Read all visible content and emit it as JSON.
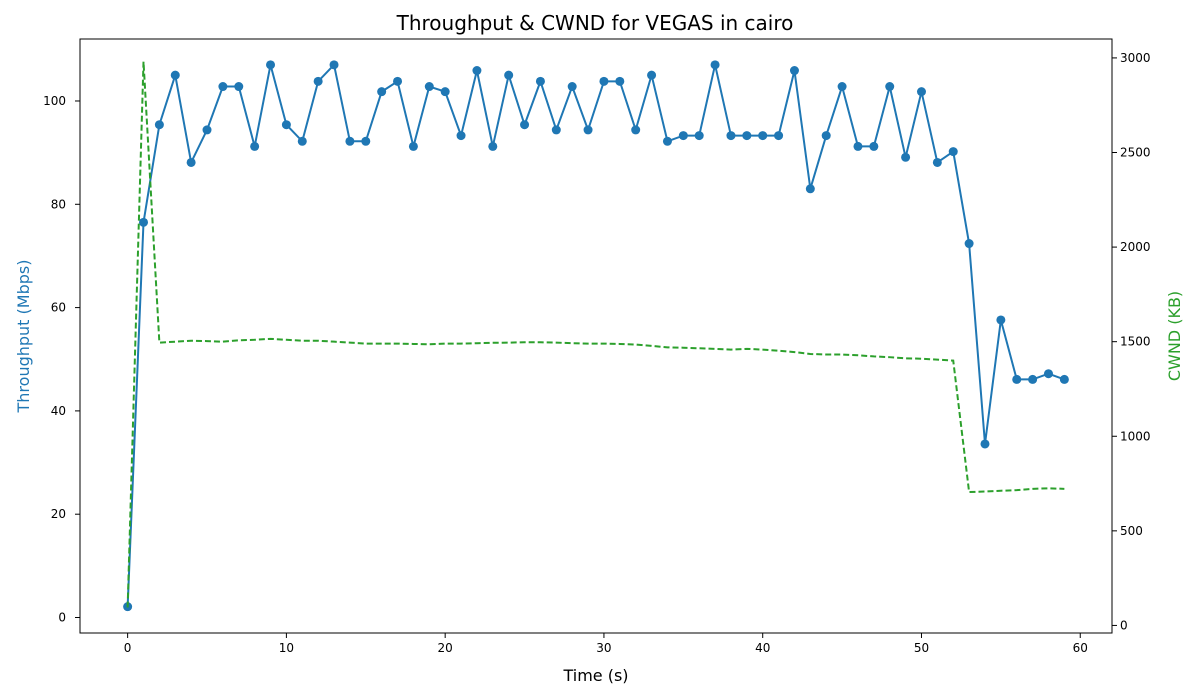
{
  "chart_data": {
    "type": "line",
    "title": "Throughput & CWND for VEGAS in cairo",
    "xlabel": "Time (s)",
    "ylabel_left": "Throughput (Mbps)",
    "ylabel_right": "CWND (KB)",
    "xlim": [
      -3,
      62
    ],
    "ylim_left": [
      -3,
      112
    ],
    "ylim_right": [
      -40,
      3100
    ],
    "xticks": [
      0,
      10,
      20,
      30,
      40,
      50,
      60
    ],
    "yticks_left": [
      0,
      20,
      40,
      60,
      80,
      100
    ],
    "yticks_right": [
      0,
      500,
      1000,
      1500,
      2000,
      2500,
      3000
    ],
    "grid": false,
    "colors": {
      "throughput": "#1f77b4",
      "cwnd": "#2ca02c"
    },
    "x": [
      0,
      1,
      2,
      3,
      4,
      5,
      6,
      7,
      8,
      9,
      10,
      11,
      12,
      13,
      14,
      15,
      16,
      17,
      18,
      19,
      20,
      21,
      22,
      23,
      24,
      25,
      26,
      27,
      28,
      29,
      30,
      31,
      32,
      33,
      34,
      35,
      36,
      37,
      38,
      39,
      40,
      41,
      42,
      43,
      44,
      45,
      46,
      47,
      48,
      49,
      50,
      51,
      52,
      53,
      54,
      55,
      56,
      57,
      58,
      59
    ],
    "series": [
      {
        "axis": "left",
        "style": "solid-markers",
        "values": [
          2.1,
          76.5,
          95.4,
          105,
          88.1,
          94.4,
          102.8,
          102.8,
          91.2,
          107,
          95.4,
          92.2,
          103.8,
          107,
          92.2,
          92.2,
          101.8,
          103.8,
          91.2,
          102.8,
          101.8,
          93.3,
          105.9,
          91.2,
          105,
          95.4,
          103.8,
          94.4,
          102.8,
          94.4,
          103.8,
          103.8,
          94.4,
          105,
          92.2,
          93.3,
          93.3,
          107,
          93.3,
          93.3,
          93.3,
          93.3,
          105.9,
          83,
          93.3,
          102.8,
          91.2,
          91.2,
          102.8,
          89.1,
          101.8,
          88.1,
          90.2,
          72.4,
          33.6,
          57.6,
          46.1,
          46.1,
          47.2,
          46.1
        ]
      },
      {
        "axis": "right",
        "style": "dashed",
        "values": [
          95,
          2980,
          1495,
          1500,
          1505,
          1503,
          1500,
          1507,
          1510,
          1515,
          1510,
          1505,
          1505,
          1500,
          1495,
          1490,
          1490,
          1490,
          1488,
          1486,
          1490,
          1490,
          1492,
          1494,
          1495,
          1497,
          1497,
          1495,
          1492,
          1490,
          1490,
          1488,
          1485,
          1478,
          1470,
          1468,
          1465,
          1462,
          1458,
          1462,
          1458,
          1452,
          1445,
          1435,
          1432,
          1432,
          1428,
          1422,
          1418,
          1412,
          1410,
          1405,
          1400,
          705,
          708,
          712,
          715,
          722,
          725,
          722
        ]
      }
    ]
  }
}
